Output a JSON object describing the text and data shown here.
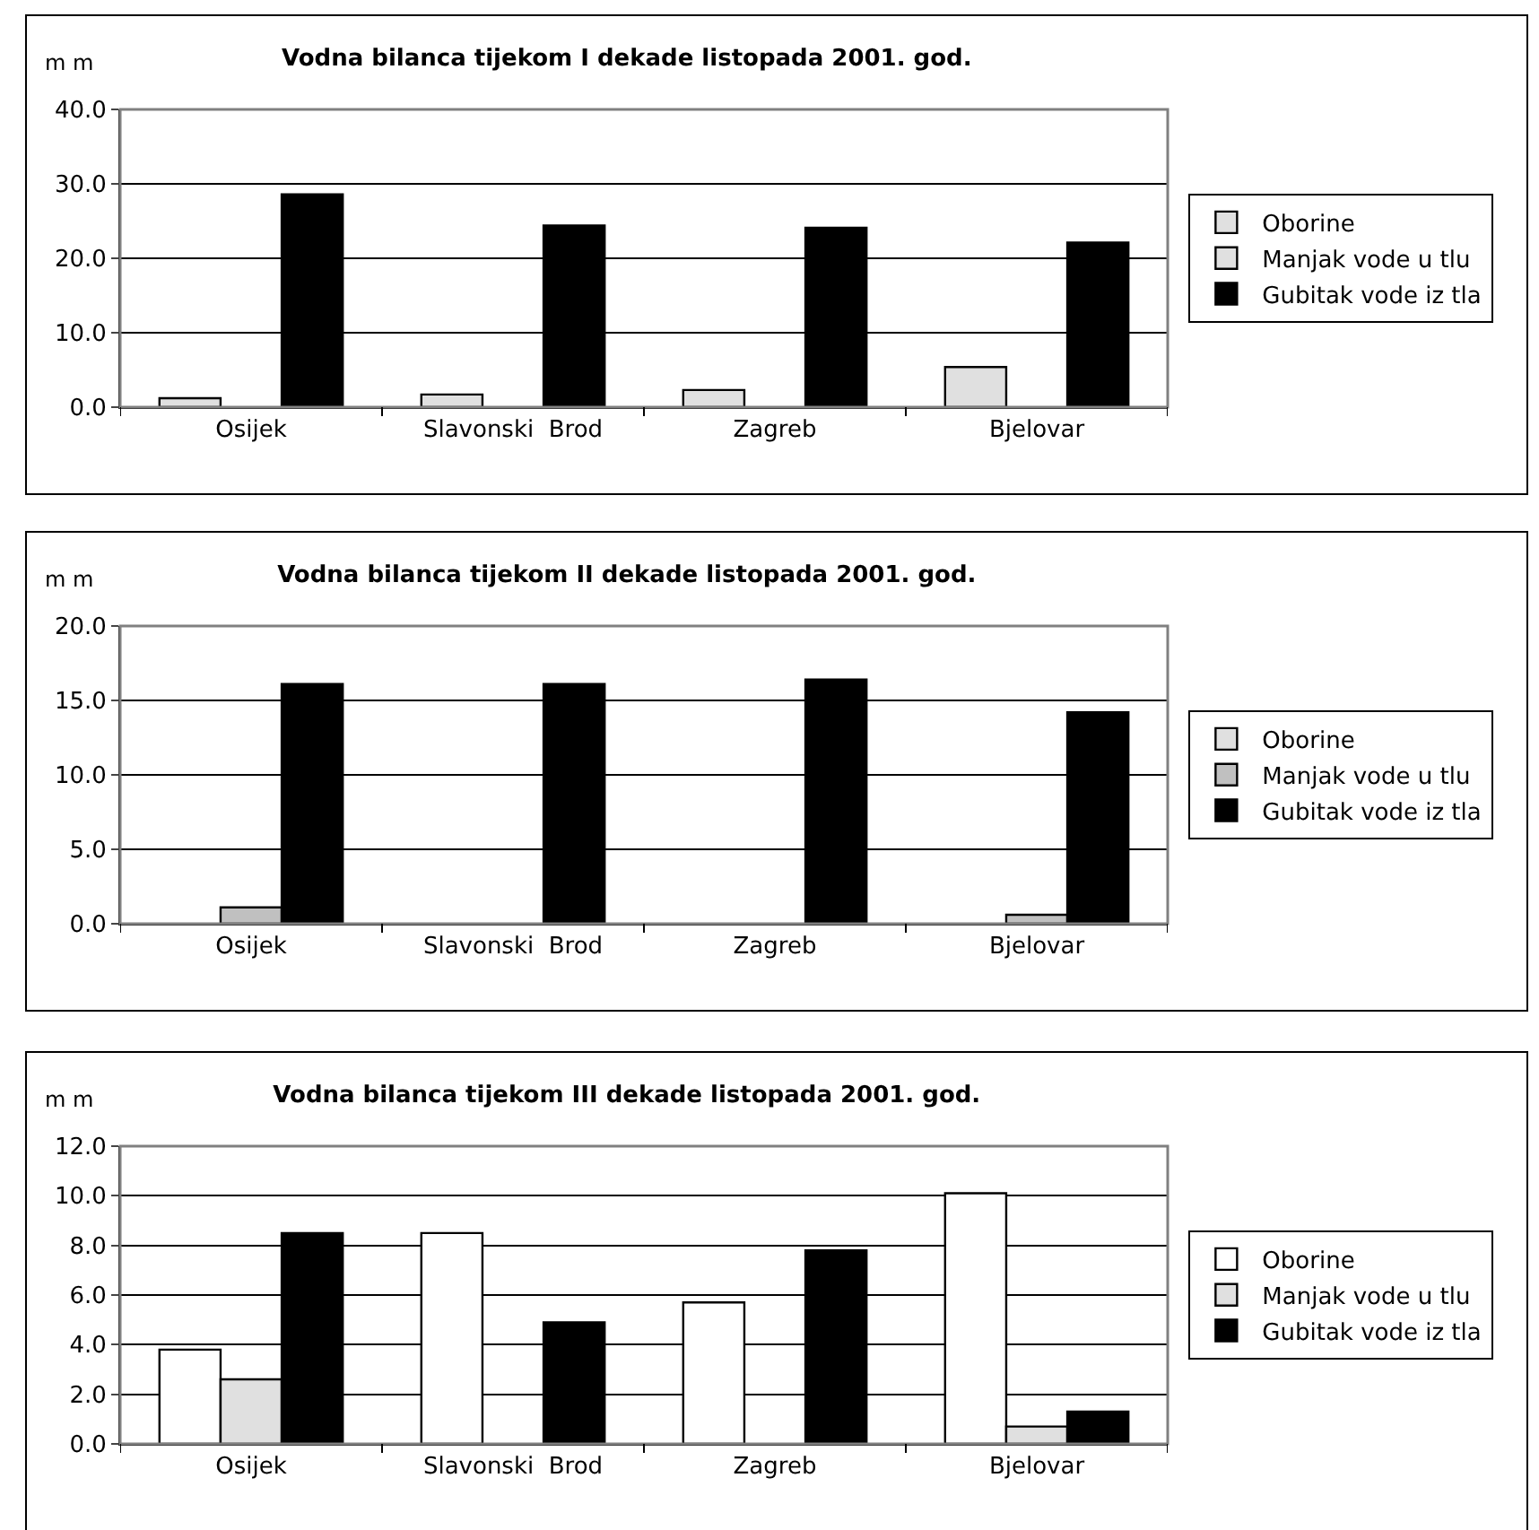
{
  "chart_data": [
    {
      "type": "bar",
      "title": "Vodna bilanca tijekom I dekade listopada 2001. god.",
      "ylabel": "m m",
      "categories": [
        "Osijek",
        "Slavonski  Brod",
        "Zagreb",
        "Bjelovar"
      ],
      "series": [
        {
          "name": "Oborine",
          "color": "#e0e0e0",
          "values": [
            1.2,
            1.7,
            2.3,
            5.4
          ]
        },
        {
          "name": "Manjak vode u tlu",
          "color": "#e0e0e0",
          "values": [
            null,
            null,
            null,
            null
          ]
        },
        {
          "name": "Gubitak vode iz tla",
          "color": "#000000",
          "values": [
            28.6,
            24.4,
            24.1,
            22.1
          ]
        }
      ],
      "ylim": [
        0,
        40
      ],
      "yticks": [
        {
          "value": 0,
          "label": "0.0"
        },
        {
          "value": 10,
          "label": "10.0"
        },
        {
          "value": 20,
          "label": "20.0"
        },
        {
          "value": 30,
          "label": "30.0"
        },
        {
          "value": 40,
          "label": "40.0"
        }
      ],
      "grid": "y",
      "legend": "right"
    },
    {
      "type": "bar",
      "title": "Vodna bilanca tijekom II dekade listopada 2001. god.",
      "ylabel": "m m",
      "categories": [
        "Osijek",
        "Slavonski  Brod",
        "Zagreb",
        "Bjelovar"
      ],
      "series": [
        {
          "name": "Oborine",
          "color": "#e0e0e0",
          "values": [
            null,
            null,
            null,
            null
          ]
        },
        {
          "name": "Manjak vode u tlu",
          "color": "#c0c0c0",
          "values": [
            1.1,
            null,
            null,
            0.6
          ]
        },
        {
          "name": "Gubitak vode iz tla",
          "color": "#000000",
          "values": [
            16.1,
            16.1,
            16.4,
            14.2
          ]
        }
      ],
      "ylim": [
        0,
        20
      ],
      "yticks": [
        {
          "value": 0,
          "label": "0.0"
        },
        {
          "value": 5,
          "label": "5.0"
        },
        {
          "value": 10,
          "label": "10.0"
        },
        {
          "value": 15,
          "label": "15.0"
        },
        {
          "value": 20,
          "label": "20.0"
        }
      ],
      "grid": "y",
      "legend": "right"
    },
    {
      "type": "bar",
      "title": "Vodna bilanca tijekom III dekade listopada 2001. god.",
      "ylabel": "m m",
      "categories": [
        "Osijek",
        "Slavonski  Brod",
        "Zagreb",
        "Bjelovar"
      ],
      "series": [
        {
          "name": "Oborine",
          "color": "#ffffff",
          "values": [
            3.8,
            8.5,
            5.7,
            10.1
          ]
        },
        {
          "name": "Manjak vode u tlu",
          "color": "#e0e0e0",
          "values": [
            2.6,
            null,
            null,
            0.7
          ]
        },
        {
          "name": "Gubitak vode iz tla",
          "color": "#000000",
          "values": [
            8.5,
            4.9,
            7.8,
            1.3
          ]
        }
      ],
      "ylim": [
        0,
        12
      ],
      "yticks": [
        {
          "value": 0,
          "label": "0.0"
        },
        {
          "value": 2,
          "label": "2.0"
        },
        {
          "value": 4,
          "label": "4.0"
        },
        {
          "value": 6,
          "label": "6.0"
        },
        {
          "value": 8,
          "label": "8.0"
        },
        {
          "value": 10,
          "label": "10.0"
        },
        {
          "value": 12,
          "label": "12.0"
        }
      ],
      "grid": "y",
      "legend": "right"
    }
  ]
}
